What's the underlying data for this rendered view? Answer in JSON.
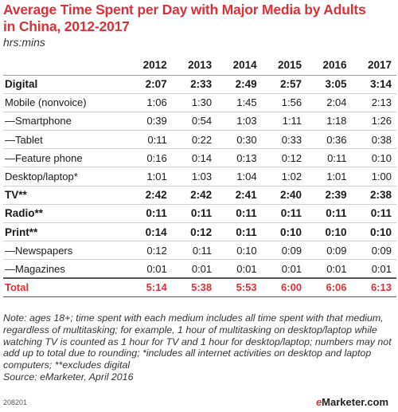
{
  "chart_data": {
    "type": "table",
    "title": "Average Time Spent per Day with Major Media by Adults in China, 2012-2017",
    "subtitle": "hrs:mins",
    "columns": [
      "2012",
      "2013",
      "2014",
      "2015",
      "2016",
      "2017"
    ],
    "rows": [
      {
        "label": "Digital",
        "style": "bold",
        "values": [
          "2:07",
          "2:33",
          "2:49",
          "2:57",
          "3:05",
          "3:14"
        ]
      },
      {
        "label": "Mobile (nonvoice)",
        "style": "normal",
        "values": [
          "1:06",
          "1:30",
          "1:45",
          "1:56",
          "2:04",
          "2:13"
        ]
      },
      {
        "label": "—Smartphone",
        "style": "normal",
        "values": [
          "0:39",
          "0:54",
          "1:03",
          "1:11",
          "1:18",
          "1:26"
        ]
      },
      {
        "label": "—Tablet",
        "style": "normal",
        "values": [
          "0:11",
          "0:22",
          "0:30",
          "0:33",
          "0:36",
          "0:38"
        ]
      },
      {
        "label": "—Feature phone",
        "style": "normal",
        "values": [
          "0:16",
          "0:14",
          "0:13",
          "0:12",
          "0:11",
          "0:10"
        ]
      },
      {
        "label": "Desktop/laptop*",
        "style": "normal",
        "values": [
          "1:01",
          "1:03",
          "1:04",
          "1:02",
          "1:01",
          "1:00"
        ]
      },
      {
        "label": "TV**",
        "style": "bold",
        "values": [
          "2:42",
          "2:42",
          "2:41",
          "2:40",
          "2:39",
          "2:38"
        ]
      },
      {
        "label": "Radio**",
        "style": "bold",
        "values": [
          "0:11",
          "0:11",
          "0:11",
          "0:11",
          "0:11",
          "0:11"
        ]
      },
      {
        "label": "Print**",
        "style": "bold",
        "values": [
          "0:14",
          "0:12",
          "0:11",
          "0:10",
          "0:10",
          "0:10"
        ]
      },
      {
        "label": "—Newspapers",
        "style": "normal",
        "values": [
          "0:12",
          "0:11",
          "0:10",
          "0:09",
          "0:09",
          "0:09"
        ]
      },
      {
        "label": "—Magazines",
        "style": "normal",
        "values": [
          "0:01",
          "0:01",
          "0:01",
          "0:01",
          "0:01",
          "0:01"
        ]
      },
      {
        "label": "Total",
        "style": "total",
        "values": [
          "5:14",
          "5:38",
          "5:53",
          "6:00",
          "6:06",
          "6:13"
        ]
      }
    ]
  },
  "note": "Note: ages 18+; time spent with each medium includes all time spent with that medium, regardless of multitasking; for example, 1 hour of multitasking on desktop/laptop while watching TV is counted as 1 hour for TV and 1 hour for desktop/laptop; numbers may not add up to total due to rounding; *includes all internet activities on desktop and laptop computers; **excludes digital",
  "source": "Source: eMarketer, April 2016",
  "footer_id": "208201",
  "logo": {
    "prefix": "e",
    "rest": "Marketer",
    "suffix": ".com"
  },
  "colors": {
    "accent": "#d9333a",
    "text": "#1a1a1a"
  }
}
